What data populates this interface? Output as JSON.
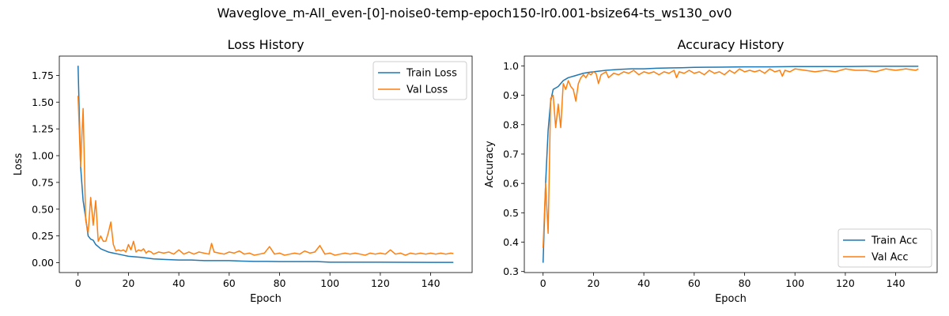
{
  "figure": {
    "suptitle": "Waveglove_m-All_even-[0]-noise0-temp-epoch150-lr0.001-bsize64-ts_ws130_ov0"
  },
  "colors": {
    "train": "#1f77b4",
    "val": "#ff7f0e"
  },
  "chart_data": [
    {
      "type": "line",
      "title": "Loss History",
      "xlabel": "Epoch",
      "ylabel": "Loss",
      "xlim": [
        -7.45,
        156.45
      ],
      "ylim": [
        -0.092,
        1.93
      ],
      "xticks": [
        "0",
        "20",
        "40",
        "60",
        "80",
        "100",
        "120",
        "140"
      ],
      "yticks": [
        "0.00",
        "0.25",
        "0.50",
        "0.75",
        "1.00",
        "1.25",
        "1.50",
        "1.75"
      ],
      "grid": false,
      "legend_position": "top-right",
      "series": [
        {
          "name": "Train Loss",
          "color_key": "train",
          "x": [
            0,
            1,
            2,
            3,
            4,
            5,
            6,
            7,
            8,
            9,
            10,
            12,
            14,
            16,
            18,
            20,
            25,
            30,
            35,
            40,
            45,
            50,
            55,
            60,
            65,
            70,
            75,
            80,
            85,
            90,
            95,
            100,
            110,
            120,
            130,
            140,
            149
          ],
          "y": [
            1.84,
            0.9,
            0.58,
            0.42,
            0.25,
            0.22,
            0.21,
            0.17,
            0.15,
            0.13,
            0.12,
            0.1,
            0.09,
            0.08,
            0.07,
            0.06,
            0.05,
            0.035,
            0.03,
            0.025,
            0.025,
            0.02,
            0.02,
            0.02,
            0.015,
            0.012,
            0.012,
            0.01,
            0.01,
            0.01,
            0.01,
            0.005,
            0.005,
            0.005,
            0.004,
            0.003,
            0.003
          ]
        },
        {
          "name": "Val Loss",
          "color_key": "val",
          "x": [
            0,
            1,
            2,
            3,
            4,
            5,
            6,
            7,
            8,
            9,
            10,
            11,
            12,
            13,
            14,
            15,
            16,
            17,
            18,
            19,
            20,
            21,
            22,
            23,
            24,
            25,
            26,
            27,
            28,
            29,
            30,
            32,
            34,
            36,
            38,
            40,
            42,
            44,
            46,
            48,
            50,
            52,
            53,
            54,
            56,
            58,
            60,
            62,
            64,
            66,
            68,
            70,
            72,
            74,
            76,
            78,
            80,
            82,
            84,
            86,
            88,
            90,
            92,
            94,
            96,
            98,
            100,
            102,
            104,
            106,
            108,
            110,
            112,
            114,
            116,
            118,
            120,
            122,
            124,
            126,
            128,
            130,
            132,
            134,
            136,
            138,
            140,
            142,
            144,
            146,
            148,
            149
          ],
          "y": [
            1.56,
            0.9,
            1.44,
            0.4,
            0.28,
            0.61,
            0.35,
            0.58,
            0.2,
            0.25,
            0.2,
            0.2,
            0.28,
            0.38,
            0.17,
            0.11,
            0.12,
            0.11,
            0.12,
            0.1,
            0.17,
            0.12,
            0.2,
            0.1,
            0.12,
            0.11,
            0.13,
            0.09,
            0.11,
            0.1,
            0.08,
            0.1,
            0.09,
            0.1,
            0.08,
            0.12,
            0.08,
            0.1,
            0.08,
            0.1,
            0.09,
            0.08,
            0.18,
            0.1,
            0.09,
            0.08,
            0.1,
            0.09,
            0.11,
            0.08,
            0.09,
            0.07,
            0.08,
            0.09,
            0.15,
            0.08,
            0.09,
            0.07,
            0.08,
            0.09,
            0.08,
            0.11,
            0.09,
            0.1,
            0.16,
            0.08,
            0.09,
            0.07,
            0.08,
            0.09,
            0.08,
            0.09,
            0.08,
            0.07,
            0.09,
            0.08,
            0.09,
            0.08,
            0.12,
            0.08,
            0.09,
            0.07,
            0.09,
            0.08,
            0.09,
            0.08,
            0.09,
            0.08,
            0.09,
            0.08,
            0.09,
            0.085
          ]
        }
      ]
    },
    {
      "type": "line",
      "title": "Accuracy History",
      "xlabel": "Epoch",
      "ylabel": "Accuracy",
      "xlim": [
        -7.45,
        156.45
      ],
      "ylim": [
        0.2965,
        1.0335
      ],
      "xticks": [
        "0",
        "20",
        "40",
        "60",
        "80",
        "100",
        "120",
        "140"
      ],
      "yticks": [
        "0.3",
        "0.4",
        "0.5",
        "0.6",
        "0.7",
        "0.8",
        "0.9",
        "1.0"
      ],
      "grid": false,
      "legend_position": "bottom-right",
      "series": [
        {
          "name": "Train Acc",
          "color_key": "train",
          "x": [
            0,
            1,
            2,
            3,
            4,
            5,
            6,
            7,
            8,
            9,
            10,
            12,
            14,
            16,
            18,
            20,
            25,
            30,
            35,
            40,
            45,
            50,
            55,
            60,
            70,
            80,
            90,
            100,
            110,
            120,
            130,
            140,
            149
          ],
          "y": [
            0.33,
            0.6,
            0.78,
            0.88,
            0.92,
            0.925,
            0.93,
            0.94,
            0.95,
            0.955,
            0.96,
            0.965,
            0.97,
            0.975,
            0.978,
            0.98,
            0.985,
            0.988,
            0.99,
            0.99,
            0.992,
            0.993,
            0.994,
            0.995,
            0.996,
            0.997,
            0.997,
            0.998,
            0.998,
            0.998,
            0.999,
            0.999,
            0.999
          ]
        },
        {
          "name": "Val Acc",
          "color_key": "val",
          "x": [
            0,
            1,
            2,
            3,
            4,
            5,
            6,
            7,
            8,
            9,
            10,
            11,
            12,
            13,
            14,
            15,
            16,
            17,
            18,
            19,
            20,
            21,
            22,
            23,
            24,
            25,
            26,
            28,
            30,
            32,
            34,
            36,
            38,
            40,
            42,
            44,
            46,
            48,
            50,
            52,
            53,
            54,
            56,
            58,
            60,
            62,
            64,
            66,
            68,
            70,
            72,
            74,
            76,
            78,
            80,
            82,
            84,
            86,
            88,
            90,
            92,
            94,
            95,
            96,
            98,
            100,
            104,
            108,
            112,
            116,
            120,
            124,
            128,
            132,
            136,
            140,
            144,
            148,
            149
          ],
          "y": [
            0.38,
            0.6,
            0.43,
            0.89,
            0.9,
            0.79,
            0.87,
            0.79,
            0.94,
            0.92,
            0.95,
            0.93,
            0.92,
            0.88,
            0.94,
            0.96,
            0.97,
            0.96,
            0.975,
            0.97,
            0.98,
            0.975,
            0.94,
            0.97,
            0.975,
            0.98,
            0.96,
            0.975,
            0.97,
            0.98,
            0.975,
            0.985,
            0.97,
            0.98,
            0.975,
            0.98,
            0.97,
            0.98,
            0.975,
            0.985,
            0.96,
            0.98,
            0.975,
            0.985,
            0.975,
            0.98,
            0.97,
            0.985,
            0.975,
            0.98,
            0.97,
            0.985,
            0.975,
            0.99,
            0.98,
            0.985,
            0.98,
            0.985,
            0.975,
            0.99,
            0.98,
            0.985,
            0.965,
            0.985,
            0.98,
            0.99,
            0.985,
            0.98,
            0.985,
            0.98,
            0.99,
            0.985,
            0.985,
            0.98,
            0.99,
            0.985,
            0.99,
            0.985,
            0.99
          ]
        }
      ]
    }
  ]
}
